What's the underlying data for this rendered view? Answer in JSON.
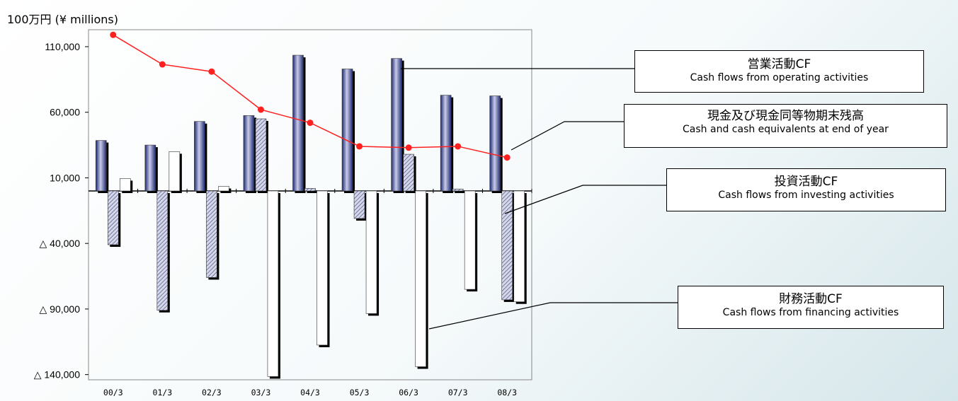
{
  "unit_label": "100万円 (¥ millions)",
  "colors": {
    "operating": "#1e2f7a",
    "investing_hatch": "#6a6f9a",
    "financing": "#ffffff",
    "cash_line": "#ff2020",
    "shadow": "#000000"
  },
  "legend": {
    "operating": {
      "jp": "営業活動CF",
      "en": "Cash flows from operating activities"
    },
    "cash": {
      "jp": "現金及び現金同等物期末残高",
      "en": "Cash and cash equivalents at end of year"
    },
    "investing": {
      "jp": "投資活動CF",
      "en": "Cash flows from investing activities"
    },
    "financing": {
      "jp": "財務活動CF",
      "en": "Cash flows from financing activities"
    }
  },
  "chart_data": {
    "type": "bar",
    "title": "",
    "xlabel": "",
    "ylabel": "",
    "ylim": [
      -140000,
      120000
    ],
    "categories": [
      "00/3",
      "01/3",
      "02/3",
      "03/3",
      "04/3",
      "05/3",
      "06/3",
      "07/3",
      "08/3"
    ],
    "yticks": [
      {
        "value": 110000,
        "label": "110,000"
      },
      {
        "value": 60000,
        "label": "60,000"
      },
      {
        "value": 10000,
        "label": "10,000"
      },
      {
        "value": -40000,
        "label": "△ 40,000"
      },
      {
        "value": -90000,
        "label": "△ 90,000"
      },
      {
        "value": -140000,
        "label": "△ 140,000"
      }
    ],
    "series": [
      {
        "name": "営業活動CF",
        "type": "bar",
        "values": [
          38500,
          35000,
          53000,
          57500,
          103500,
          93000,
          101000,
          73000,
          72500
        ]
      },
      {
        "name": "投資活動CF",
        "type": "bar",
        "values": [
          -41000,
          -91000,
          -66000,
          55000,
          2000,
          -21000,
          28000,
          1500,
          -83000
        ]
      },
      {
        "name": "財務活動CF",
        "type": "bar",
        "values": [
          9500,
          30000,
          3500,
          -141500,
          -117500,
          -93500,
          -134000,
          -75000,
          -84500
        ]
      },
      {
        "name": "現金及び現金同等物期末残高",
        "type": "line",
        "values": [
          119000,
          96500,
          91000,
          62000,
          52000,
          34000,
          33000,
          34000,
          25500
        ]
      }
    ],
    "grid": false,
    "legend_placement": "right"
  }
}
